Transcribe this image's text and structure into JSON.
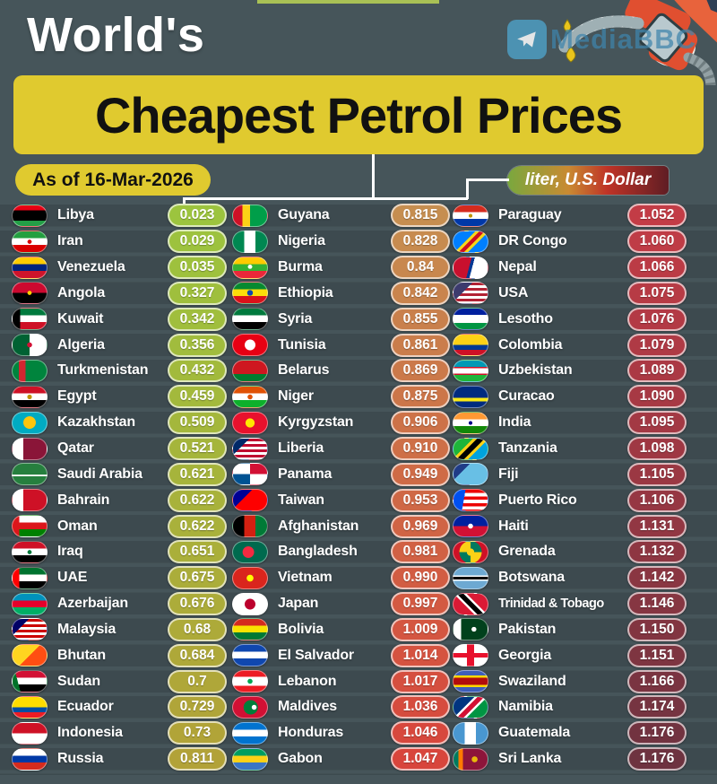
{
  "header": {
    "title_line1": "World's",
    "title_line2": "Cheapest Petrol Prices",
    "date_badge": "As of 16-Mar-2026",
    "unit_badge": "liter, U.S. Dollar",
    "watermark": "MediaBBC"
  },
  "colors": {
    "background": "#46555a",
    "row_band": "#3d4a4f",
    "accent_yellow": "#e0ca2f",
    "pill_gradients": [
      [
        "#9cc43e",
        "#b2a238"
      ],
      [
        "#c68e50",
        "#d8453c"
      ],
      [
        "#c33c46",
        "#6e3340"
      ]
    ],
    "unit_badge_gradient": "linear-gradient(90deg,#79a83e 0%,#c98a32 38%,#bf3327 62%,#5f1d24 100%)"
  },
  "chart_data": {
    "type": "table",
    "title": "World's Cheapest Petrol Prices",
    "as_of": "As of 16-Mar-2026",
    "unit": "liter, U.S. Dollar",
    "columns": [
      {
        "rows": [
          {
            "name": "Libya",
            "price": "0.023",
            "flag": "linear-gradient(180deg,#e70013 0 25%,#000000 25% 75%,#239e46 75%)"
          },
          {
            "name": "Iran",
            "price": "0.029",
            "flag": "radial-gradient(circle at 50% 50%,#da0000 10%,rgba(0,0,0,0) 11%),linear-gradient(180deg,#239f40 0 33%,#ffffff 33% 66%,#da0000 66%)"
          },
          {
            "name": "Venezuela",
            "price": "0.035",
            "flag": "linear-gradient(180deg,#ffcc00 0 33%,#00247d 33% 66%,#cf142b 66%)"
          },
          {
            "name": "Angola",
            "price": "0.327",
            "flag": "radial-gradient(circle at 50% 50%,#ffcb00 10%,rgba(0,0,0,0) 11%),linear-gradient(180deg,#cc092f 0 50%,#000000 50%)"
          },
          {
            "name": "Kuwait",
            "price": "0.342",
            "flag": "linear-gradient(90deg,#000000 0 22%,rgba(0,0,0,0) 22%),linear-gradient(180deg,#007a3d 0 33%,#ffffff 33% 66%,#ce1126 66%)"
          },
          {
            "name": "Algeria",
            "price": "0.356",
            "flag": "radial-gradient(circle at 50% 50%,#d21034 12%,rgba(0,0,0,0) 13%),linear-gradient(90deg,#006233 0 50%,#ffffff 50%)"
          },
          {
            "name": "Turkmenistan",
            "price": "0.432",
            "flag": "linear-gradient(90deg,#00843d 0 18%,#d22630 18% 38%,#00843d 38%)"
          },
          {
            "name": "Egypt",
            "price": "0.459",
            "flag": "radial-gradient(circle at 50% 50%,#c09300 11%,rgba(0,0,0,0) 12%),linear-gradient(180deg,#ce1126 0 33%,#ffffff 33% 66%,#000000 66%)"
          },
          {
            "name": "Kazakhstan",
            "price": "0.509",
            "flag": "radial-gradient(circle at 50% 48%,#fec50c 30%,#00abc2 32%)"
          },
          {
            "name": "Qatar",
            "price": "0.521",
            "flag": "linear-gradient(90deg,#ffffff 0 32%,#8a1538 32%)"
          },
          {
            "name": "Saudi Arabia",
            "price": "0.621",
            "flag": "linear-gradient(0deg,rgba(0,0,0,0) 0 40%,rgba(255,255,255,0.9) 40% 47%,rgba(0,0,0,0) 47%),linear-gradient(#267f3e,#267f3e)"
          },
          {
            "name": "Bahrain",
            "price": "0.622",
            "flag": "linear-gradient(90deg,#ffffff 0 32%,#ce1126 32%)"
          },
          {
            "name": "Oman",
            "price": "0.622",
            "flag": "linear-gradient(90deg,#db161b 0 20%,rgba(0,0,0,0) 20%),linear-gradient(180deg,#ffffff 0 33%,#db161b 33% 66%,#008000 66%)"
          },
          {
            "name": "Iraq",
            "price": "0.651",
            "flag": "radial-gradient(circle at 50% 50%,#007a3d 10%,rgba(0,0,0,0) 11%),linear-gradient(180deg,#ce1126 0 33%,#ffffff 33% 66%,#000000 66%)"
          },
          {
            "name": "UAE",
            "price": "0.675",
            "flag": "linear-gradient(90deg,#ff0000 0 20%,rgba(0,0,0,0) 20%),linear-gradient(180deg,#00732f 0 33%,#ffffff 33% 66%,#000000 66%)"
          },
          {
            "name": "Azerbaijan",
            "price": "0.676",
            "flag": "linear-gradient(180deg,#0092bc 0 33%,#e4002b 33% 66%,#00ae65 66%)"
          },
          {
            "name": "Malaysia",
            "price": "0.68",
            "flag": "linear-gradient(135deg,#010066 0 30%,rgba(0,0,0,0) 30%),repeating-linear-gradient(180deg,#cc0001 0 3px,#ffffff 3px 6px)"
          },
          {
            "name": "Bhutan",
            "price": "0.684",
            "flag": "linear-gradient(135deg,#ffd520 0 50%,#ff4e12 50%)"
          },
          {
            "name": "Sudan",
            "price": "0.7",
            "flag": "linear-gradient(75deg,#007229 0 20%,rgba(0,0,0,0) 20%),linear-gradient(180deg,#d21034 0 33%,#ffffff 33% 66%,#000000 66%)"
          },
          {
            "name": "Ecuador",
            "price": "0.729",
            "flag": "linear-gradient(180deg,#ffdd00 0 50%,#034ea2 50% 75%,#ed1c24 75%)"
          },
          {
            "name": "Indonesia",
            "price": "0.73",
            "flag": "linear-gradient(180deg,#ce1126 0 50%,#ffffff 50%)"
          },
          {
            "name": "Russia",
            "price": "0.811",
            "flag": "linear-gradient(180deg,#ffffff 0 33%,#0039a6 33% 66%,#d52b1e 66%)"
          }
        ]
      },
      {
        "rows": [
          {
            "name": "Guyana",
            "price": "0.815",
            "flag": "linear-gradient(90deg,#ce1126 0 28%,#fcd116 28% 50%,#009e49 50%)"
          },
          {
            "name": "Nigeria",
            "price": "0.828",
            "flag": "linear-gradient(90deg,#008751 0 33%,#ffffff 33% 66%,#008751 66%)"
          },
          {
            "name": "Burma",
            "price": "0.84",
            "flag": "radial-gradient(circle at 50% 45%,#ffffff 10%,rgba(0,0,0,0) 11%),linear-gradient(180deg,#fecb00 0 33%,#34b233 33% 66%,#ea2839 66%)"
          },
          {
            "name": "Ethiopia",
            "price": "0.842",
            "flag": "radial-gradient(circle at 50% 50%,#0f47af 14%,rgba(0,0,0,0) 15%),linear-gradient(180deg,#078930 0 33%,#fcdd09 33% 66%,#da121a 66%)"
          },
          {
            "name": "Syria",
            "price": "0.855",
            "flag": "linear-gradient(180deg,#007a3d 0 33%,#ffffff 33% 66%,#000000 66%)"
          },
          {
            "name": "Tunisia",
            "price": "0.861",
            "flag": "radial-gradient(circle at 50% 50%,#ffffff 26%,#e70013 28%)"
          },
          {
            "name": "Belarus",
            "price": "0.869",
            "flag": "linear-gradient(180deg,#ce1720 0 65%,#007c30 65%)"
          },
          {
            "name": "Niger",
            "price": "0.875",
            "flag": "radial-gradient(circle at 50% 50%,#e05206 12%,rgba(0,0,0,0) 13%),linear-gradient(180deg,#e05206 0 33%,#ffffff 33% 66%,#0db02b 66%)"
          },
          {
            "name": "Kyrgyzstan",
            "price": "0.906",
            "flag": "radial-gradient(circle at 50% 50%,#ffe800 22%,#e8112d 24%)"
          },
          {
            "name": "Liberia",
            "price": "0.910",
            "flag": "linear-gradient(135deg,#002868 0 30%,rgba(0,0,0,0) 30%),repeating-linear-gradient(180deg,#bf0a30 0 3px,#ffffff 3px 6px)"
          },
          {
            "name": "Panama",
            "price": "0.949",
            "flag": "conic-gradient(#d21034 0 25%,#ffffff 25% 50%,#005293 50% 75%,#ffffff 75%)"
          },
          {
            "name": "Taiwan",
            "price": "0.953",
            "flag": "linear-gradient(135deg,#000095 0 35%,rgba(0,0,0,0) 35%),linear-gradient(#fe0000,#fe0000)"
          },
          {
            "name": "Afghanistan",
            "price": "0.969",
            "flag": "linear-gradient(90deg,#000000 0 33%,#d32011 33% 66%,#007a36 66%)"
          },
          {
            "name": "Bangladesh",
            "price": "0.981",
            "flag": "radial-gradient(circle at 45% 50%,#f42a41 26%,#006a4e 28%)"
          },
          {
            "name": "Vietnam",
            "price": "0.990",
            "flag": "radial-gradient(circle at 50% 50%,#ffff00 16%,#da251d 18%)"
          },
          {
            "name": "Japan",
            "price": "0.997",
            "flag": "radial-gradient(circle at 50% 50%,#bc002d 26%,#ffffff 28%)"
          },
          {
            "name": "Bolivia",
            "price": "1.009",
            "flag": "linear-gradient(180deg,#d52b1e 0 33%,#f9e300 33% 66%,#007934 66%)"
          },
          {
            "name": "El Salvador",
            "price": "1.014",
            "flag": "linear-gradient(180deg,#0f47af 0 33%,#ffffff 33% 66%,#0f47af 66%)"
          },
          {
            "name": "Lebanon",
            "price": "1.017",
            "flag": "radial-gradient(circle at 50% 50%,#00a651 12%,rgba(0,0,0,0) 13%),linear-gradient(180deg,#ed1c24 0 28%,#ffffff 28% 72%,#ed1c24 72%)"
          },
          {
            "name": "Maldives",
            "price": "1.036",
            "flag": "radial-gradient(circle at 62% 50%,#ffffff 10%,rgba(0,0,0,0) 11%),radial-gradient(circle at 52% 50%,#007e3a 34%,#d21034 36%)"
          },
          {
            "name": "Honduras",
            "price": "1.046",
            "flag": "linear-gradient(180deg,#0073cf 0 33%,#ffffff 33% 66%,#0073cf 66%)"
          },
          {
            "name": "Gabon",
            "price": "1.047",
            "flag": "linear-gradient(180deg,#009e60 0 33%,#fcd116 33% 66%,#3a75c4 66%)"
          }
        ]
      },
      {
        "rows": [
          {
            "name": "Paraguay",
            "price": "1.052",
            "flag": "radial-gradient(circle at 50% 50%,#c09300 9%,rgba(0,0,0,0) 10%),linear-gradient(180deg,#d52b1e 0 33%,#ffffff 33% 66%,#0038a8 66%)"
          },
          {
            "name": "DR Congo",
            "price": "1.060",
            "flag": "linear-gradient(135deg,#007fff 0 40%,#f7d618 40% 47%,#ce1021 47% 57%,#f7d618 57% 64%,#007fff 64%)"
          },
          {
            "name": "Nepal",
            "price": "1.066",
            "flag": "linear-gradient(105deg,#c8102e 0 46%,#003893 46% 54%,#ffffff 54%)"
          },
          {
            "name": "USA",
            "price": "1.075",
            "flag": "linear-gradient(135deg,#3c3b6e 0 35%,rgba(0,0,0,0) 35%),repeating-linear-gradient(180deg,#b22234 0 3px,#ffffff 3px 6px)"
          },
          {
            "name": "Lesotho",
            "price": "1.076",
            "flag": "linear-gradient(180deg,#00209f 0 30%,#ffffff 30% 70%,#009543 70%)"
          },
          {
            "name": "Colombia",
            "price": "1.079",
            "flag": "linear-gradient(180deg,#fcd116 0 50%,#003893 50% 75%,#ce1126 75%)"
          },
          {
            "name": "Uzbekistan",
            "price": "1.089",
            "flag": "linear-gradient(180deg,#0099b5 0 31%,#ce1126 31% 36%,#ffffff 36% 64%,#ce1126 64% 69%,#1eb53a 69%)"
          },
          {
            "name": "Curacao",
            "price": "1.090",
            "flag": "linear-gradient(180deg,#002b7f 0 55%,#f9e814 55% 72%,#002b7f 72%)"
          },
          {
            "name": "India",
            "price": "1.095",
            "flag": "radial-gradient(circle at 50% 50%,#000088 9%,rgba(0,0,0,0) 10%),linear-gradient(180deg,#ff9933 0 33%,#ffffff 33% 66%,#138808 66%)"
          },
          {
            "name": "Tanzania",
            "price": "1.098",
            "flag": "linear-gradient(135deg,#1eb53a 0 36%,#fcd116 36% 43%,#000000 43% 57%,#fcd116 57% 64%,#00a3dd 64%)"
          },
          {
            "name": "Fiji",
            "price": "1.105",
            "flag": "linear-gradient(135deg,#1f3c87 0 30%,rgba(0,0,0,0) 30%),linear-gradient(#68bfe5,#68bfe5)"
          },
          {
            "name": "Puerto Rico",
            "price": "1.106",
            "flag": "linear-gradient(100deg,#0050f0 0 32%,rgba(0,0,0,0) 32%),repeating-linear-gradient(180deg,#ed0000 0 3.7px,#ffffff 3.7px 7.4px)"
          },
          {
            "name": "Haiti",
            "price": "1.131",
            "flag": "radial-gradient(circle at 50% 50%,#ffffff 12%,rgba(0,0,0,0) 13%),linear-gradient(180deg,#00209f 0 50%,#d21034 50%)"
          },
          {
            "name": "Grenada",
            "price": "1.132",
            "flag": "radial-gradient(circle at 50% 50%,#fcd116 18%,rgba(0,0,0,0) 19%),radial-gradient(circle at 50% 50%,rgba(0,0,0,0) 55%,#ce1126 57%),conic-gradient(#007a5e 0 25%,#fcd116 25% 50%,#007a5e 50% 75%,#fcd116 75%)"
          },
          {
            "name": "Botswana",
            "price": "1.142",
            "flag": "linear-gradient(180deg,#6da9d2 0 36%,#ffffff 36% 43%,#000000 43% 57%,#ffffff 57% 64%,#6da9d2 64%)"
          },
          {
            "name": "Trinidad & Tobago",
            "price": "1.146",
            "flag": "linear-gradient(45deg,#da1a35 0 38%,#ffffff 38% 44%,#000000 44% 56%,#ffffff 56% 62%,#da1a35 62%)"
          },
          {
            "name": "Pakistan",
            "price": "1.150",
            "flag": "radial-gradient(circle at 60% 50%,#ffffff 10%,rgba(0,0,0,0) 11%),linear-gradient(90deg,#ffffff 0 22%,#01411c 22%)"
          },
          {
            "name": "Georgia",
            "price": "1.151",
            "flag": "linear-gradient(90deg,rgba(0,0,0,0) 0 40%,#e8112d 40% 60%,rgba(0,0,0,0) 60%),linear-gradient(180deg,#ffffff 0 40%,#e8112d 40% 60%,#ffffff 60%)"
          },
          {
            "name": "Swaziland",
            "price": "1.166",
            "flag": "linear-gradient(180deg,#3e5eb9 0 22%,#ffd900 22% 32%,#b10c0c 32% 68%,#ffd900 68% 78%,#3e5eb9 78%)"
          },
          {
            "name": "Namibia",
            "price": "1.174",
            "flag": "linear-gradient(135deg,#003580 0 38%,#ffffff 38% 44%,#d21034 44% 56%,#ffffff 56% 62%,#009543 62%)"
          },
          {
            "name": "Guatemala",
            "price": "1.176",
            "flag": "linear-gradient(90deg,#4997d0 0 33%,#ffffff 33% 66%,#4997d0 66%)"
          },
          {
            "name": "Sri Lanka",
            "price": "1.176",
            "flag": "radial-gradient(circle at 62% 50%,#e8b80c 12%,rgba(0,0,0,0) 13%),linear-gradient(90deg,#007a5e 0 14%,#ff7a00 14% 28%,#8d153a 28%)"
          }
        ]
      }
    ]
  }
}
